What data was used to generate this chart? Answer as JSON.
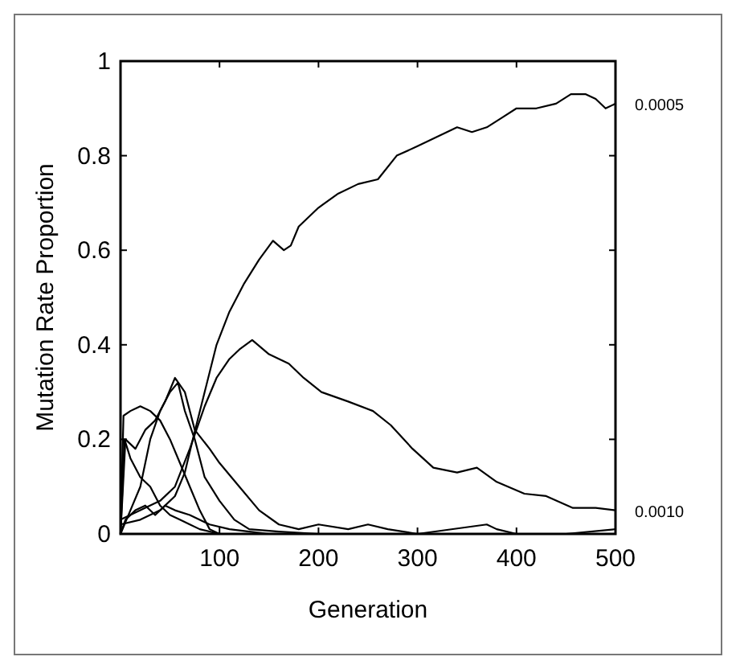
{
  "chart_data": {
    "type": "line",
    "xlabel": "Generation",
    "ylabel": "Mutation Rate Proportion",
    "xlim": [
      0,
      500
    ],
    "ylim": [
      0,
      1
    ],
    "xticks": [
      {
        "value": 0,
        "label": null
      },
      100,
      200,
      300,
      400,
      500
    ],
    "yticks": [
      0,
      0.2,
      0.4,
      0.6,
      0.8,
      1
    ],
    "grid": false,
    "marker": "none",
    "line_style": "solid",
    "series": [
      {
        "name": "0.0005",
        "color": "#000000",
        "x": [
          0,
          20,
          40,
          55,
          65,
          73,
          85,
          97,
          110,
          125,
          140,
          154,
          165,
          172,
          180,
          200,
          220,
          240,
          260,
          279,
          300,
          320,
          340,
          355,
          370,
          385,
          400,
          420,
          440,
          455,
          470,
          480,
          490,
          500
        ],
        "values": [
          0.02,
          0.03,
          0.05,
          0.08,
          0.13,
          0.2,
          0.3,
          0.4,
          0.47,
          0.53,
          0.58,
          0.62,
          0.6,
          0.61,
          0.65,
          0.69,
          0.72,
          0.74,
          0.75,
          0.8,
          0.82,
          0.84,
          0.86,
          0.85,
          0.86,
          0.88,
          0.9,
          0.9,
          0.91,
          0.93,
          0.93,
          0.92,
          0.9,
          0.91
        ]
      },
      {
        "name": "0.0010",
        "color": "#000000",
        "x": [
          0,
          20,
          40,
          55,
          70,
          85,
          97,
          110,
          120,
          133,
          150,
          170,
          185,
          203,
          230,
          255,
          273,
          295,
          316,
          340,
          360,
          380,
          408,
          430,
          457,
          480,
          500
        ],
        "values": [
          0.03,
          0.05,
          0.07,
          0.1,
          0.18,
          0.27,
          0.33,
          0.37,
          0.39,
          0.41,
          0.38,
          0.36,
          0.33,
          0.3,
          0.28,
          0.26,
          0.23,
          0.18,
          0.14,
          0.13,
          0.14,
          0.11,
          0.085,
          0.08,
          0.055,
          0.055,
          0.05
        ]
      },
      {
        "color": "#000000",
        "x": [
          0,
          3,
          10,
          20,
          30,
          40,
          50,
          60,
          70,
          80,
          90,
          100
        ],
        "values": [
          0,
          0.25,
          0.26,
          0.27,
          0.26,
          0.24,
          0.2,
          0.15,
          0.1,
          0.05,
          0.01,
          0
        ]
      },
      {
        "color": "#000000",
        "x": [
          0,
          5,
          15,
          25,
          35,
          45,
          55,
          65,
          75,
          90,
          100,
          120,
          140,
          160,
          180,
          200,
          230,
          250,
          270,
          300,
          370,
          380,
          400,
          450,
          500
        ],
        "values": [
          0,
          0.2,
          0.18,
          0.22,
          0.24,
          0.28,
          0.33,
          0.3,
          0.22,
          0.18,
          0.15,
          0.1,
          0.05,
          0.02,
          0.01,
          0.02,
          0.01,
          0.02,
          0.01,
          0,
          0.02,
          0.01,
          0,
          0,
          0.01
        ]
      },
      {
        "color": "#000000",
        "x": [
          0,
          10,
          20,
          30,
          40,
          50,
          58,
          65,
          75,
          85,
          100,
          115,
          130,
          160,
          200,
          500
        ],
        "values": [
          0,
          0.05,
          0.1,
          0.2,
          0.26,
          0.3,
          0.32,
          0.26,
          0.2,
          0.12,
          0.07,
          0.03,
          0.01,
          0.005,
          0,
          0
        ]
      },
      {
        "color": "#000000",
        "x": [
          0,
          4,
          10,
          20,
          30,
          40,
          50,
          60,
          70,
          80,
          100,
          500
        ],
        "values": [
          0,
          0.2,
          0.16,
          0.12,
          0.1,
          0.06,
          0.04,
          0.03,
          0.02,
          0.01,
          0,
          0
        ]
      },
      {
        "color": "#000000",
        "x": [
          0,
          5,
          15,
          25,
          35,
          45,
          55,
          70,
          90,
          110,
          130,
          150,
          500
        ],
        "values": [
          0,
          0.03,
          0.05,
          0.06,
          0.04,
          0.06,
          0.05,
          0.04,
          0.02,
          0.01,
          0.005,
          0,
          0
        ]
      }
    ]
  }
}
